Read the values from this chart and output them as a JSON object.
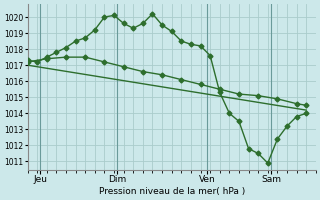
{
  "title": "Pression niveau de la mer( hPa )",
  "bg_color": "#cce8ea",
  "grid_color": "#aacccc",
  "line_color": "#2d6e2d",
  "ylim": [
    1010.5,
    1020.8
  ],
  "yticks": [
    1011,
    1012,
    1013,
    1014,
    1015,
    1016,
    1017,
    1018,
    1019,
    1020
  ],
  "xlim": [
    0,
    90
  ],
  "xtick_positions": [
    4,
    28,
    56,
    76
  ],
  "xtick_labels": [
    "Jeu",
    "Dim",
    "Ven",
    "Sam"
  ],
  "vline_positions": [
    4,
    28,
    56,
    76
  ],
  "line1_x": [
    0,
    3,
    6,
    9,
    12,
    15,
    18,
    21,
    24,
    27,
    30,
    33,
    36,
    39,
    42,
    45,
    48,
    51,
    54,
    57,
    60,
    63,
    66,
    69,
    72,
    75,
    78,
    81,
    84,
    87
  ],
  "line1_y": [
    1017.3,
    1017.2,
    1017.5,
    1017.8,
    1018.1,
    1018.5,
    1018.7,
    1019.2,
    1020.0,
    1020.1,
    1019.6,
    1019.3,
    1019.6,
    1020.2,
    1019.5,
    1019.1,
    1018.5,
    1018.3,
    1018.2,
    1017.6,
    1015.3,
    1014.0,
    1013.5,
    1011.8,
    1011.5,
    1010.9,
    1012.4,
    1013.2,
    1013.8,
    1014.0
  ],
  "line2_x": [
    0,
    6,
    12,
    18,
    24,
    30,
    36,
    42,
    48,
    54,
    60,
    66,
    72,
    78,
    84,
    87
  ],
  "line2_y": [
    1017.2,
    1017.4,
    1017.5,
    1017.5,
    1017.2,
    1016.9,
    1016.6,
    1016.4,
    1016.1,
    1015.8,
    1015.5,
    1015.2,
    1015.1,
    1014.9,
    1014.6,
    1014.5
  ],
  "line3_x": [
    0,
    87
  ],
  "line3_y": [
    1017.0,
    1014.2
  ],
  "marker": "D",
  "markersize": 2.5,
  "linewidth": 1.0
}
